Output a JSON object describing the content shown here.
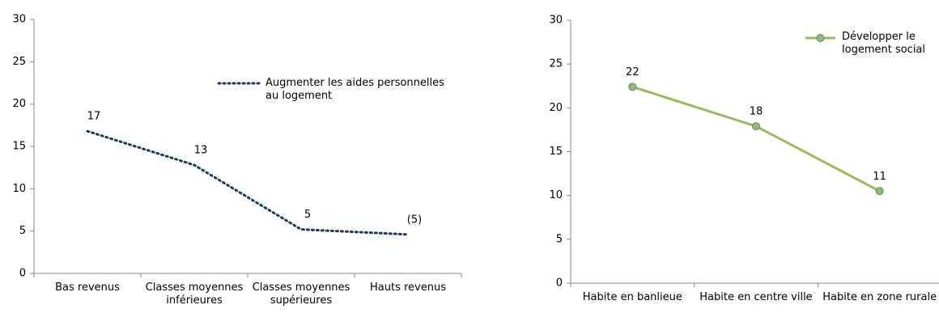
{
  "chart_data": [
    {
      "type": "line",
      "categories": [
        "Bas revenus",
        "Classes moyennes inférieures",
        "Classes moyennes supérieures",
        "Hauts revenus"
      ],
      "series": [
        {
          "name": "Augmenter les aides personnelles au logement",
          "color": "#1f3b5c",
          "line_style": "dotted",
          "marker": false,
          "values": [
            16.8,
            12.8,
            5.2,
            4.6
          ],
          "value_labels": [
            "17",
            "13",
            "5",
            "(5)"
          ]
        }
      ],
      "ylim": [
        0,
        30
      ],
      "yticks": [
        0,
        5,
        10,
        15,
        20,
        25,
        30
      ],
      "legend": "top-center"
    },
    {
      "type": "line",
      "categories": [
        "Habite en banlieue",
        "Habite en centre ville",
        "Habite en zone rurale"
      ],
      "series": [
        {
          "name": "Développer le logement social",
          "color": "#9bbb59",
          "line_style": "solid",
          "marker": true,
          "values": [
            22.4,
            17.9,
            10.5
          ],
          "value_labels": [
            "22",
            "18",
            "11"
          ]
        }
      ],
      "ylim": [
        0,
        30
      ],
      "yticks": [
        0,
        5,
        10,
        15,
        20,
        25,
        30
      ],
      "legend": "top-right"
    }
  ]
}
